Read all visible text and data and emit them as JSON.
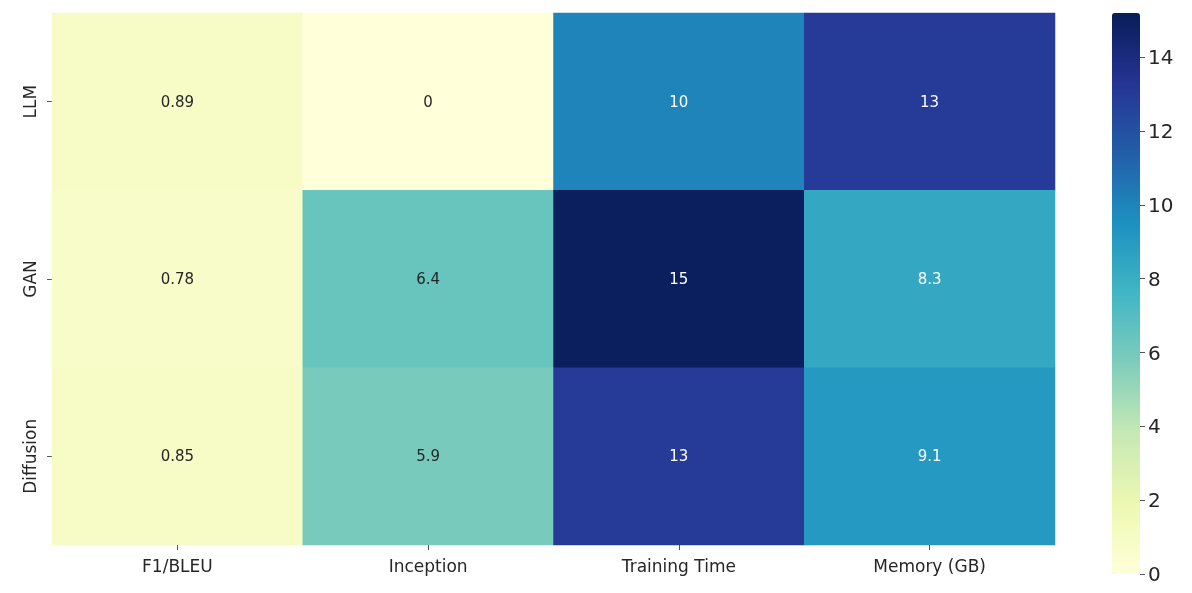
{
  "chart_data": {
    "type": "heatmap",
    "categories": [
      "F1/BLEU",
      "Inception",
      "Training Time",
      "Memory (GB)"
    ],
    "y_categories": [
      "LLM",
      "GAN",
      "Diffusion"
    ],
    "cells": [
      [
        0.89,
        0,
        10,
        13
      ],
      [
        0.78,
        6.4,
        15,
        8.3
      ],
      [
        0.85,
        5.9,
        13,
        9.1
      ]
    ],
    "data_labels": true,
    "clim": [
      0,
      15.2
    ],
    "cticks": [
      0,
      2,
      4,
      6,
      8,
      10,
      12,
      14
    ]
  }
}
